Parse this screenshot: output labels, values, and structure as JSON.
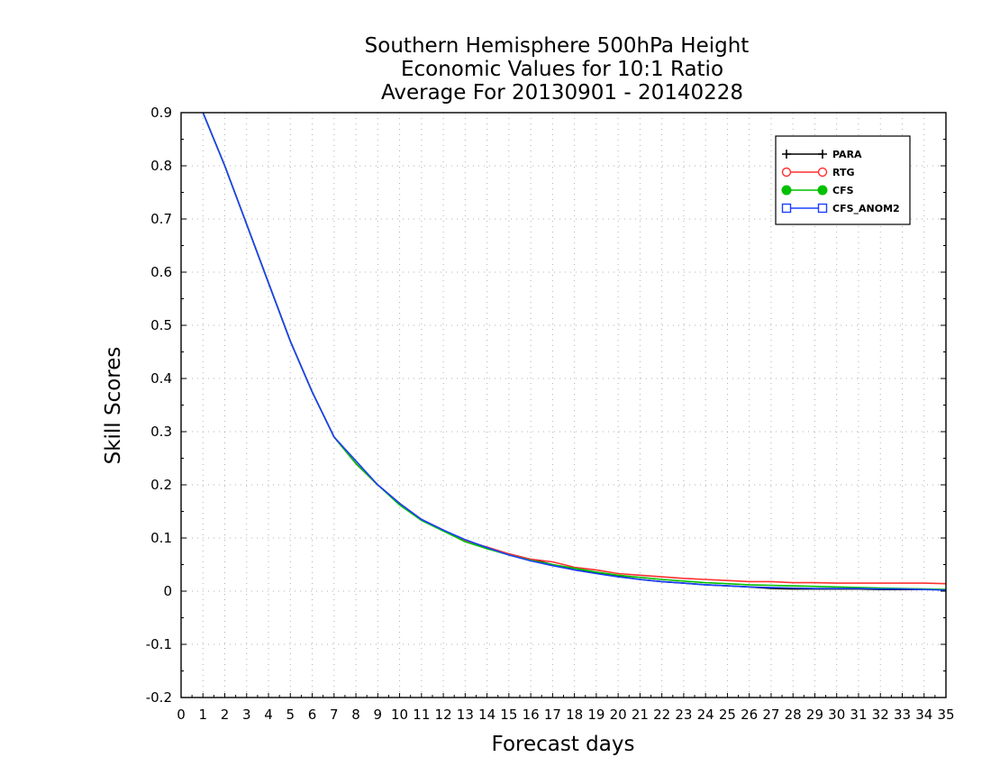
{
  "chart_data": {
    "type": "line",
    "title": [
      "Southern Hemisphere 500hPa Height",
      "Economic Values for 10:1 Ratio",
      "Average For 20130901 - 20140228"
    ],
    "xlabel": "Forecast days",
    "ylabel": "Skill Scores",
    "xlim": [
      0,
      35
    ],
    "ylim": [
      -0.2,
      0.9
    ],
    "xticks": [
      "0",
      "1",
      "2",
      "3",
      "4",
      "5",
      "6",
      "7",
      "8",
      "9",
      "10",
      "11",
      "12",
      "13",
      "14",
      "15",
      "16",
      "17",
      "18",
      "19",
      "20",
      "21",
      "22",
      "23",
      "24",
      "25",
      "26",
      "27",
      "28",
      "29",
      "30",
      "31",
      "32",
      "33",
      "34",
      "35"
    ],
    "yticks": [
      "-0.2",
      "-0.1",
      "0",
      "0.1",
      "0.2",
      "0.3",
      "0.4",
      "0.5",
      "0.6",
      "0.7",
      "0.8",
      "0.9"
    ],
    "grid": true,
    "legend_position": "top-right",
    "x": [
      1,
      2,
      3,
      4,
      5,
      6,
      7,
      8,
      9,
      10,
      11,
      12,
      13,
      14,
      15,
      16,
      17,
      18,
      19,
      20,
      21,
      22,
      23,
      24,
      25,
      26,
      27,
      28,
      29,
      30,
      31,
      32,
      33,
      34,
      35
    ],
    "series": [
      {
        "name": "PARA",
        "color": "#000000",
        "marker": "plus",
        "values": [
          0.9,
          0.8,
          0.69,
          0.58,
          0.47,
          0.375,
          0.29,
          0.24,
          0.2,
          0.165,
          0.135,
          0.115,
          0.095,
          0.08,
          0.07,
          0.06,
          0.05,
          0.04,
          0.035,
          0.028,
          0.022,
          0.018,
          0.015,
          0.012,
          0.01,
          0.008,
          0.005,
          0.004,
          0.004,
          0.004,
          0.004,
          0.003,
          0.003,
          0.003,
          0.003
        ]
      },
      {
        "name": "RTG",
        "color": "#ff3030",
        "marker": "open-circle",
        "values": [
          0.9,
          0.8,
          0.69,
          0.58,
          0.47,
          0.375,
          0.29,
          0.24,
          0.2,
          0.165,
          0.135,
          0.115,
          0.095,
          0.083,
          0.07,
          0.06,
          0.055,
          0.045,
          0.04,
          0.033,
          0.03,
          0.027,
          0.024,
          0.022,
          0.02,
          0.018,
          0.018,
          0.016,
          0.016,
          0.015,
          0.015,
          0.015,
          0.015,
          0.015,
          0.014
        ]
      },
      {
        "name": "CFS",
        "color": "#00c000",
        "marker": "filled-circle",
        "values": [
          0.9,
          0.8,
          0.69,
          0.58,
          0.47,
          0.375,
          0.29,
          0.24,
          0.2,
          0.162,
          0.133,
          0.113,
          0.093,
          0.08,
          0.068,
          0.058,
          0.05,
          0.043,
          0.036,
          0.03,
          0.026,
          0.022,
          0.019,
          0.016,
          0.014,
          0.012,
          0.011,
          0.01,
          0.009,
          0.008,
          0.007,
          0.006,
          0.005,
          0.004,
          0.003
        ]
      },
      {
        "name": "CFS_ANOM2",
        "color": "#1a40ff",
        "marker": "open-square",
        "values": [
          0.9,
          0.8,
          0.69,
          0.58,
          0.47,
          0.375,
          0.29,
          0.245,
          0.2,
          0.165,
          0.135,
          0.115,
          0.097,
          0.082,
          0.068,
          0.057,
          0.048,
          0.04,
          0.033,
          0.027,
          0.022,
          0.018,
          0.015,
          0.012,
          0.01,
          0.008,
          0.007,
          0.006,
          0.005,
          0.005,
          0.005,
          0.004,
          0.004,
          0.003,
          0.002
        ]
      }
    ]
  }
}
